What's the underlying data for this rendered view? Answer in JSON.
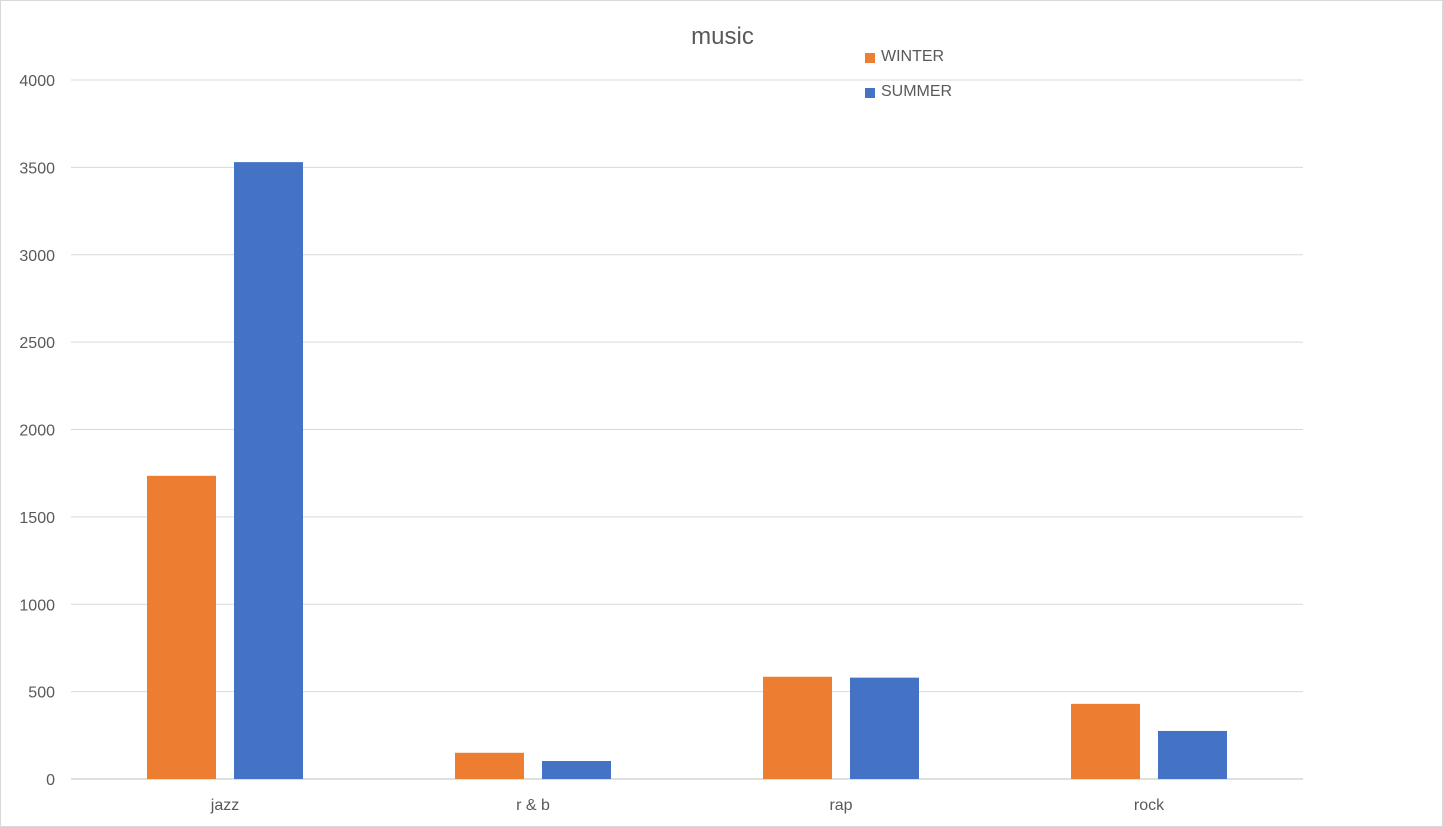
{
  "chart_data": {
    "type": "bar",
    "title": "music",
    "categories": [
      "jazz",
      "r & b",
      "rap",
      "rock"
    ],
    "series": [
      {
        "name": "WINTER",
        "color": "#ED7D31",
        "values": [
          1735,
          150,
          585,
          430
        ]
      },
      {
        "name": "SUMMER",
        "color": "#4472C4",
        "values": [
          3530,
          103,
          580,
          275
        ]
      }
    ],
    "ylim": [
      0,
      4000
    ],
    "yticks": [
      0,
      500,
      1000,
      1500,
      2000,
      2500,
      3000,
      3500,
      4000
    ],
    "grid": true,
    "legend": "top-right",
    "xlabel": "",
    "ylabel": ""
  }
}
